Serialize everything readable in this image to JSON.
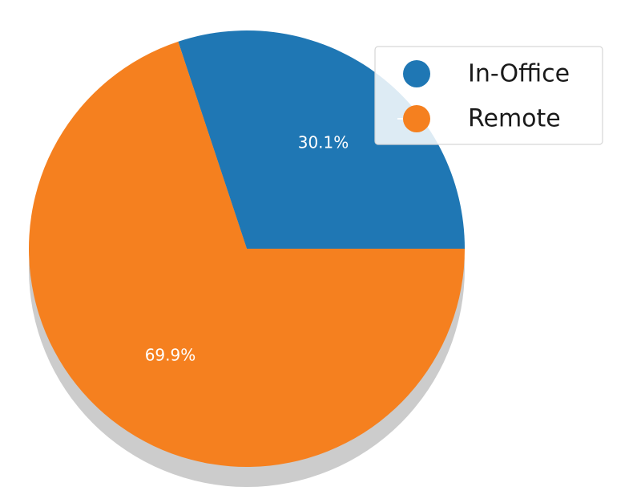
{
  "chart_data": {
    "type": "pie",
    "title": "",
    "shadow": true,
    "start_angle_deg": 0,
    "direction": "counterclockwise",
    "legend_position": "top-right",
    "slices": [
      {
        "label": "In-Office",
        "value": 30.1,
        "pct_label": "30.1%",
        "color": "#1f77b4"
      },
      {
        "label": "Remote",
        "value": 69.9,
        "pct_label": "69.9%",
        "color": "#f5801f"
      }
    ],
    "shadow_color": "#cccccc"
  }
}
